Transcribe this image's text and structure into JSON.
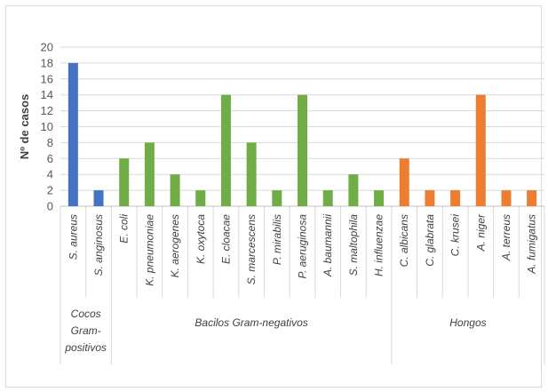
{
  "chart_data": {
    "type": "bar",
    "title": "",
    "xlabel": "",
    "ylabel": "Nº de casos",
    "ylim": [
      0,
      20
    ],
    "yticks": [
      0,
      2,
      4,
      6,
      8,
      10,
      12,
      14,
      16,
      18,
      20
    ],
    "grid": true,
    "legend": "none",
    "categories": [
      "S. aureus",
      "S. anginosus",
      "E. coli",
      "K. pneumoniae",
      "K. aerogenes",
      "K. oxytoca",
      "E. cloacae",
      "S. marcescens",
      "P. mirabilis",
      "P. aeruginosa",
      "A. baumannii",
      "S. maltophila",
      "H. influenzae",
      "C. albicans",
      "C. glabrata",
      "C. krusei",
      "A. niger",
      "A. terreus",
      "A. fumigatus"
    ],
    "values": [
      18,
      2,
      6,
      8,
      4,
      2,
      14,
      8,
      2,
      14,
      2,
      4,
      2,
      6,
      2,
      2,
      14,
      2,
      2
    ],
    "groups": [
      {
        "label": [
          "Cocos",
          "Gram-",
          "positivos"
        ],
        "start": 0,
        "end": 1,
        "color": "#4472c4"
      },
      {
        "label": [
          "Bacilos Gram-negativos"
        ],
        "start": 2,
        "end": 12,
        "color": "#70ad47"
      },
      {
        "label": [
          "Hongos"
        ],
        "start": 13,
        "end": 18,
        "color": "#ed7d31"
      }
    ]
  }
}
